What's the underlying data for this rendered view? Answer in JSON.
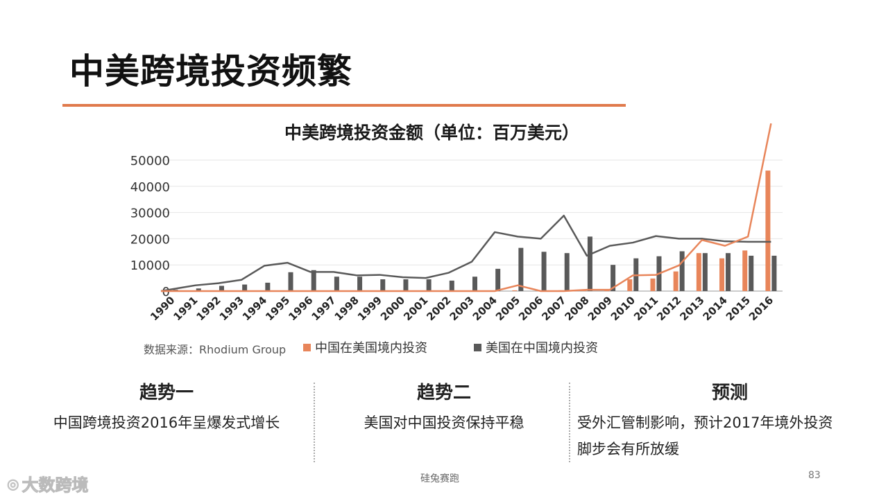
{
  "slide": {
    "title": "中美跨境投资频繁",
    "accent_color": "#e07a4c"
  },
  "chart_data": {
    "type": "bar+line",
    "title": "中美跨境投资金额（单位：百万美元）",
    "categories": [
      "1990",
      "1991",
      "1992",
      "1993",
      "1994",
      "1995",
      "1996",
      "1997",
      "1998",
      "1999",
      "2000",
      "2001",
      "2002",
      "2003",
      "2004",
      "2005",
      "2006",
      "2007",
      "2008",
      "2009",
      "2010",
      "2011",
      "2012",
      "2013",
      "2014",
      "2015",
      "2016"
    ],
    "ylim": [
      0,
      50000
    ],
    "yticks": [
      "0",
      "10000",
      "20000",
      "30000",
      "40000",
      "50000"
    ],
    "series": [
      {
        "name": "中国在美国境内投资",
        "color": "#e8855a",
        "values": [
          0,
          0,
          0,
          0,
          0,
          0,
          0,
          0,
          0,
          0,
          0,
          0,
          0,
          0,
          100,
          300,
          0,
          300,
          500,
          500,
          4500,
          4800,
          7500,
          14500,
          12500,
          15500,
          46000
        ]
      },
      {
        "name": "美国在中国境内投资",
        "color": "#595959",
        "values": [
          500,
          1000,
          2000,
          2500,
          3200,
          7200,
          8000,
          5500,
          5500,
          4500,
          4500,
          4500,
          4000,
          5500,
          8500,
          16500,
          15000,
          14500,
          20800,
          10000,
          12500,
          13300,
          15200,
          14500,
          14500,
          13500,
          13500
        ]
      }
    ],
    "lines": [
      {
        "series": "美国在中国境内投资",
        "color": "#595959",
        "values": [
          0,
          2200,
          3000,
          4300,
          9700,
          10800,
          7300,
          7300,
          6000,
          6200,
          5300,
          5000,
          7000,
          11200,
          22500,
          20800,
          20000,
          28800,
          13500,
          17300,
          18500,
          21000,
          20000,
          20000,
          19000,
          18800,
          18800
        ]
      },
      {
        "series": "中国在美国境内投资",
        "color": "#e8855a",
        "values": [
          0,
          0,
          0,
          0,
          0,
          0,
          0,
          0,
          0,
          0,
          0,
          0,
          0,
          0,
          0,
          2200,
          0,
          0,
          500,
          500,
          6000,
          6200,
          9800,
          19500,
          17300,
          20800,
          64000
        ]
      }
    ],
    "legend": "bottom",
    "source": "数据来源：Rhodium Group",
    "grid": true
  },
  "trends": [
    {
      "heading": "趋势一",
      "lines": [
        "中国跨境投资2016年呈爆发式增长"
      ]
    },
    {
      "heading": "趋势二",
      "lines": [
        "美国对中国投资保持平稳"
      ]
    },
    {
      "heading": "预测",
      "lines": [
        "受外汇管制影响，预计2017年境外投资",
        "脚步会有所放缓"
      ]
    }
  ],
  "footer": {
    "center": "硅兔赛跑",
    "page": "83"
  },
  "watermark": "大数跨境"
}
